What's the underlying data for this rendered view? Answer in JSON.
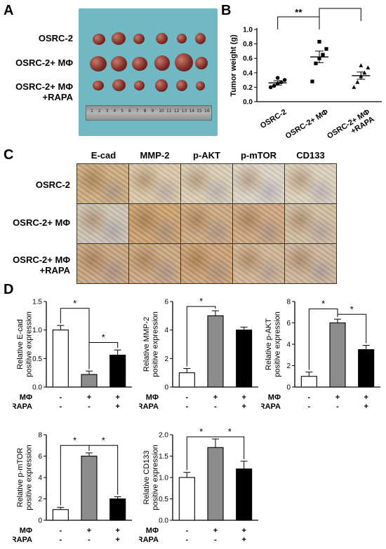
{
  "panel_labels": {
    "a": "A",
    "b": "B",
    "c": "C",
    "d": "D"
  },
  "panelA": {
    "rows": [
      "OSRC-2",
      "OSRC-2+ MΦ",
      "OSRC-2+ MΦ",
      "+RAPA"
    ],
    "ruler_numbers": [
      "1",
      "2",
      "3",
      "4",
      "5",
      "6",
      "7",
      "8",
      "9",
      "10",
      "11",
      "12",
      "13",
      "14",
      "15",
      "16"
    ]
  },
  "panelC": {
    "columns": [
      "E-cad",
      "MMP-2",
      "p-AKT",
      "p-mTOR",
      "CD133"
    ],
    "rows": [
      "OSRC-2",
      "OSRC-2+ MΦ",
      "OSRC-2+ MΦ",
      "+RAPA"
    ]
  },
  "chart_data": [
    {
      "id": "tumor-weight",
      "type": "scatter",
      "ylabel": "Tumor weight (g)",
      "ylim": [
        0,
        1.0
      ],
      "yticks": [
        "0.0",
        "0.2",
        "0.4",
        "0.6",
        "0.8",
        "1.0"
      ],
      "categories": [
        "OSRC-2",
        "OSRC-2+ MΦ",
        "OSRC-2+ MΦ +RAPA"
      ],
      "category_lines": [
        [
          "OSRC-2"
        ],
        [
          "OSRC-2+ MΦ"
        ],
        [
          "OSRC-2+ MΦ",
          "+RAPA"
        ]
      ],
      "points": [
        [
          0.2,
          0.22,
          0.25,
          0.27,
          0.3,
          0.33
        ],
        [
          0.28,
          0.53,
          0.6,
          0.65,
          0.73,
          0.83
        ],
        [
          0.2,
          0.27,
          0.35,
          0.4,
          0.47,
          0.5
        ]
      ],
      "means": [
        0.26,
        0.62,
        0.36
      ],
      "sem": [
        0.03,
        0.08,
        0.05
      ],
      "significance": [
        {
          "from": 0,
          "to": 1,
          "label": "**"
        },
        {
          "from": 1,
          "to": 2,
          "label": "*"
        }
      ]
    },
    {
      "id": "e-cad",
      "type": "bar",
      "ylabel": [
        "Relative E-cad",
        "positive expression"
      ],
      "ylim": [
        0,
        1.5
      ],
      "yticks": [
        "0.0",
        "0.5",
        "1.0",
        "1.5"
      ],
      "values": [
        1.0,
        0.22,
        0.56
      ],
      "errors": [
        0.08,
        0.06,
        0.09
      ],
      "row_labels": [
        "MΦ",
        "RAPA"
      ],
      "signs": [
        [
          "-",
          "+",
          "+"
        ],
        [
          "-",
          "-",
          "+"
        ]
      ],
      "significance": [
        {
          "from": 0,
          "to": 1,
          "label": "*",
          "level": 1.38
        },
        {
          "from": 1,
          "to": 2,
          "label": "*",
          "level": 0.78
        }
      ]
    },
    {
      "id": "mmp-2",
      "type": "bar",
      "ylabel": [
        "Relative MMP-2",
        "positive expression"
      ],
      "ylim": [
        0,
        6
      ],
      "yticks": [
        "0",
        "2",
        "4",
        "6"
      ],
      "values": [
        1.0,
        5.0,
        4.0
      ],
      "errors": [
        0.3,
        0.35,
        0.2
      ],
      "row_labels": [
        "MΦ",
        "RAPA"
      ],
      "signs": [
        [
          "-",
          "+",
          "+"
        ],
        [
          "-",
          "-",
          "+"
        ]
      ],
      "significance": [
        {
          "from": 0,
          "to": 1,
          "label": "*",
          "level": 5.65
        }
      ]
    },
    {
      "id": "p-akt",
      "type": "bar",
      "ylabel": [
        "Relative p-AKT",
        "positive expression"
      ],
      "ylim": [
        0,
        8
      ],
      "yticks": [
        "0",
        "2",
        "4",
        "6",
        "8"
      ],
      "values": [
        1.0,
        6.0,
        3.5
      ],
      "errors": [
        0.4,
        0.35,
        0.4
      ],
      "row_labels": [
        "MΦ",
        "RAPA"
      ],
      "signs": [
        [
          "-",
          "+",
          "+"
        ],
        [
          "-",
          "-",
          "+"
        ]
      ],
      "significance": [
        {
          "from": 0,
          "to": 1,
          "label": "*",
          "level": 7.3
        },
        {
          "from": 1,
          "to": 2,
          "label": "*",
          "level": 6.8
        }
      ]
    },
    {
      "id": "p-mtor",
      "type": "bar",
      "ylabel": [
        "Relative p-mTOR",
        "positive expression"
      ],
      "ylim": [
        0,
        8
      ],
      "yticks": [
        "0",
        "2",
        "4",
        "6",
        "8"
      ],
      "values": [
        1.0,
        6.0,
        2.0
      ],
      "errors": [
        0.2,
        0.3,
        0.2
      ],
      "row_labels": [
        "MΦ",
        "RAPA"
      ],
      "signs": [
        [
          "-",
          "+",
          "+"
        ],
        [
          "-",
          "-",
          "+"
        ]
      ],
      "significance": [
        {
          "from": 0,
          "to": 1,
          "label": "*",
          "level": 7.0
        },
        {
          "from": 1,
          "to": 2,
          "label": "*",
          "level": 7.0
        }
      ]
    },
    {
      "id": "cd133",
      "type": "bar",
      "ylabel": [
        "Relative CD133",
        "positive expression"
      ],
      "ylim": [
        0,
        2.0
      ],
      "yticks": [
        "0.0",
        "0.5",
        "1.0",
        "1.5",
        "2.0"
      ],
      "values": [
        1.0,
        1.7,
        1.2
      ],
      "errors": [
        0.12,
        0.2,
        0.18
      ],
      "row_labels": [
        "MΦ",
        "RAPA"
      ],
      "signs": [
        [
          "-",
          "+",
          "+"
        ],
        [
          "-",
          "-",
          "+"
        ]
      ],
      "significance": [
        {
          "from": 0,
          "to": 1,
          "label": "*",
          "level": 1.95
        },
        {
          "from": 1,
          "to": 2,
          "label": "*",
          "level": 1.95
        }
      ]
    }
  ],
  "colors": {
    "bar_fills": [
      "#ffffff",
      "#8c8c8c",
      "#000000"
    ],
    "point": "#000000"
  }
}
